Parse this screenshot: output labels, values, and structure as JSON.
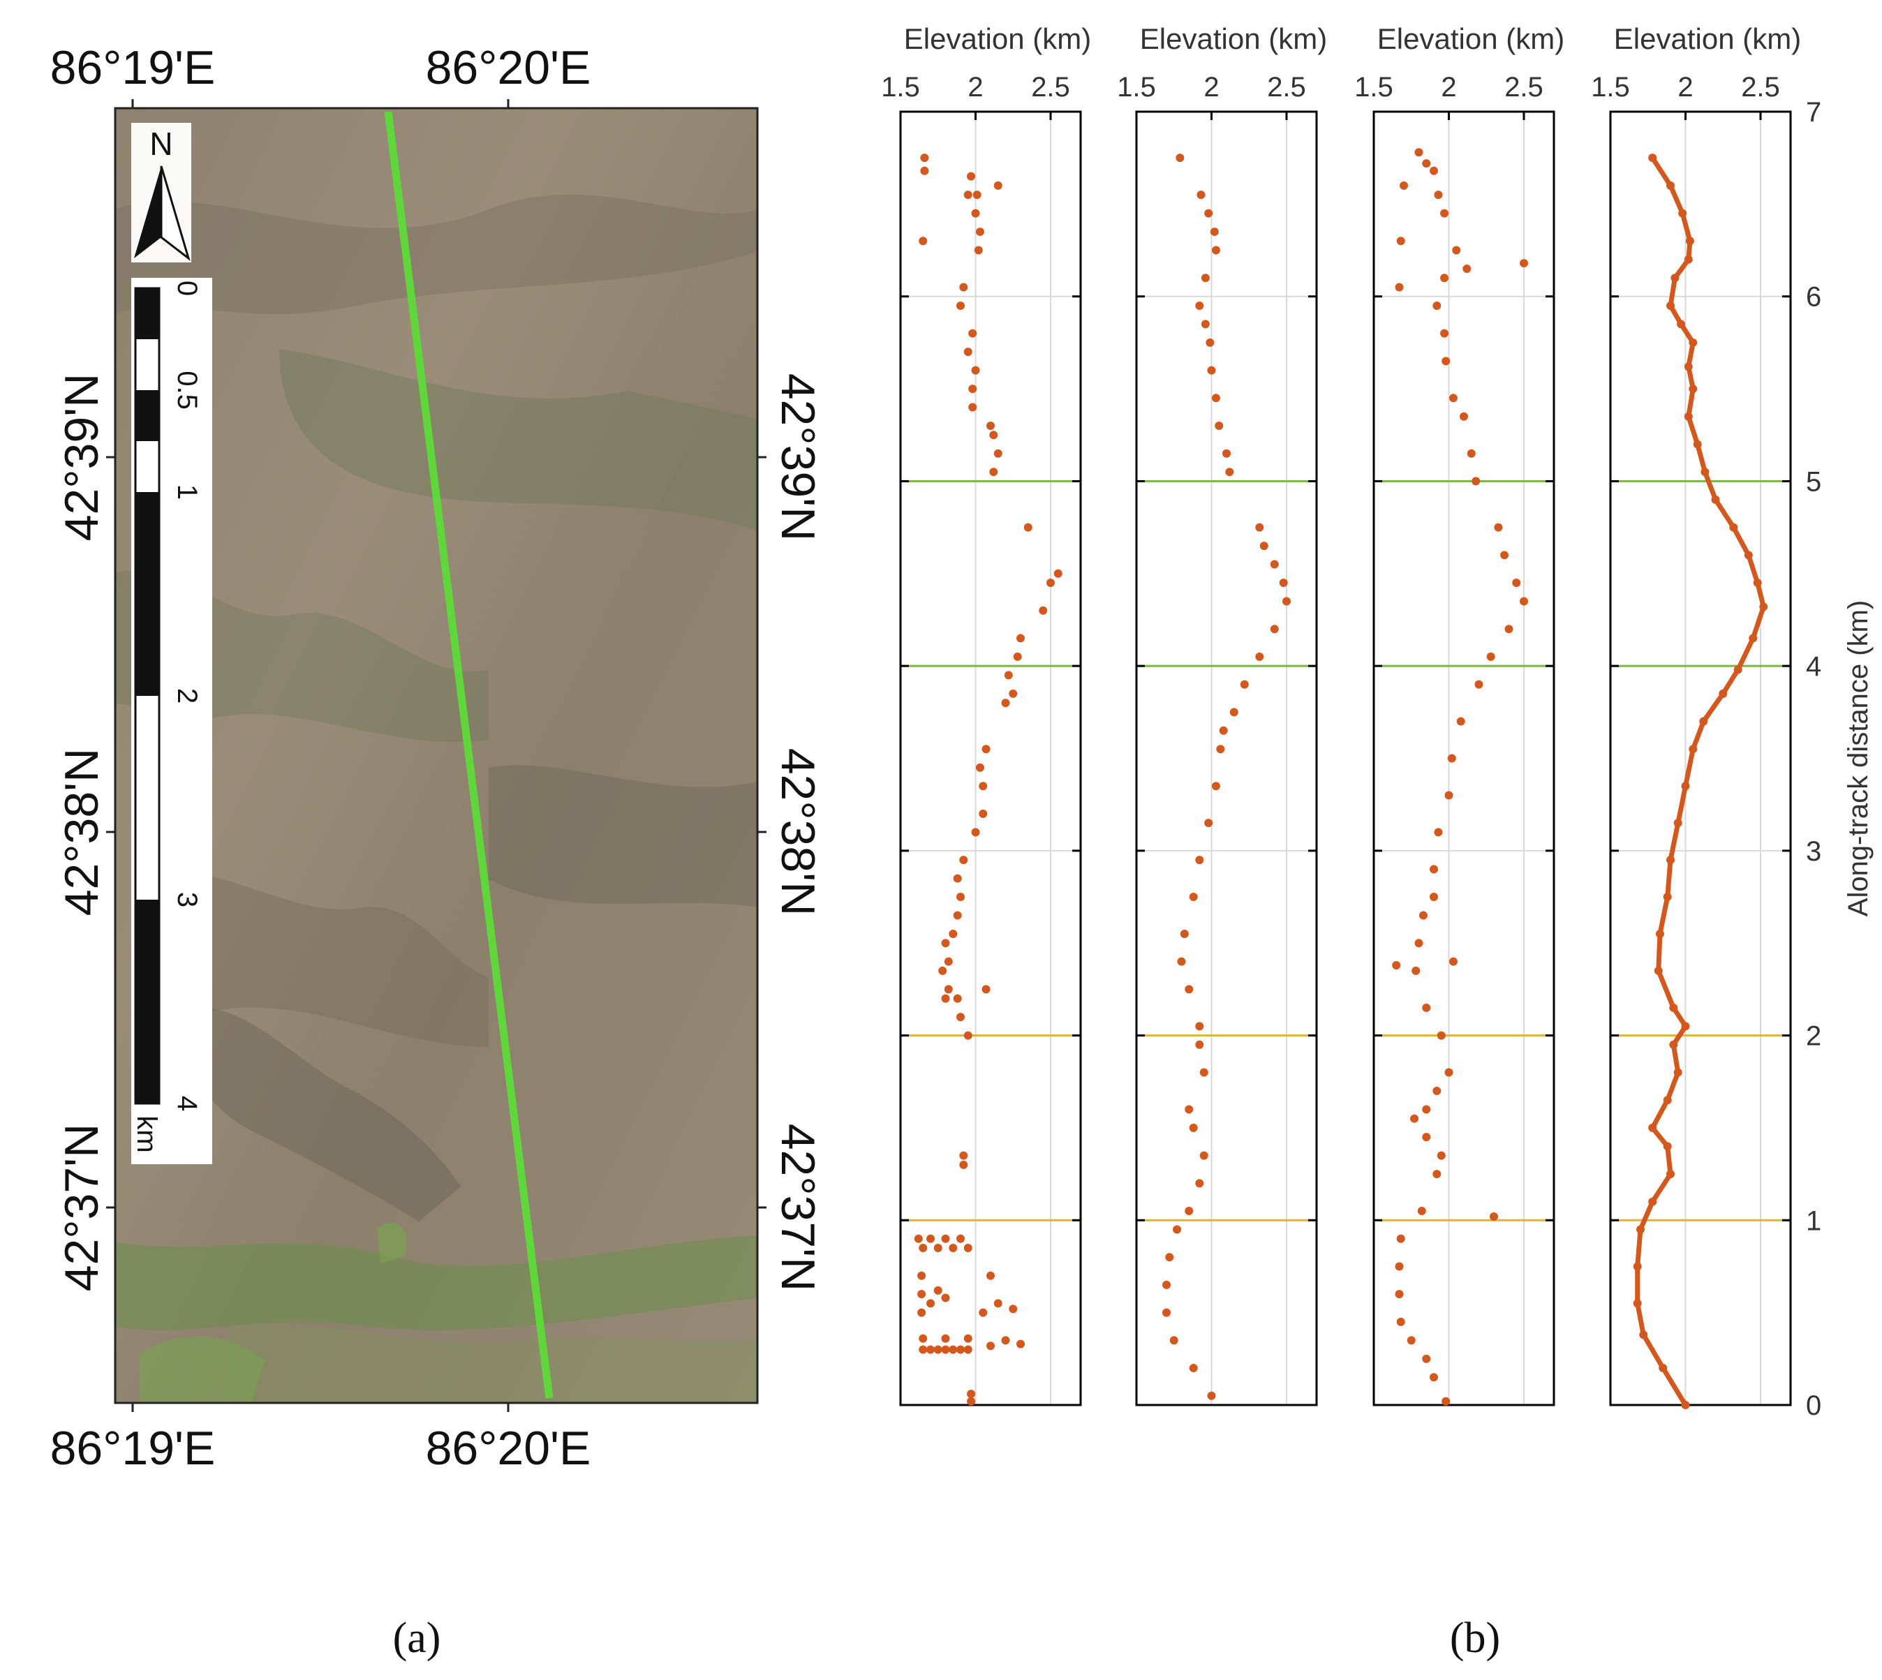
{
  "panel_a": {
    "caption": "(a)",
    "lon_labels": [
      "86°19'E",
      "86°20'E"
    ],
    "lat_labels": [
      "42°39'N",
      "42°38'N",
      "42°37'N"
    ],
    "north_arrow_label": "N",
    "scale_bar": {
      "ticks": [
        "0",
        "0.5",
        "1",
        "2",
        "3",
        "4"
      ],
      "unit": "km"
    },
    "track_color": "#5fd63a"
  },
  "panel_b": {
    "caption": "(b)"
  },
  "colors": {
    "points": "#d2581e",
    "green_box": "#7fb541",
    "orange_box": "#e0b43c",
    "grid": "#d9d9d9",
    "axis": "#000000"
  },
  "chart_data": [
    {
      "type": "scatter",
      "xlabel": "Elevation (km)",
      "xlim": [
        1.5,
        2.7
      ],
      "xticks": [
        "1.5",
        "2",
        "2.5"
      ],
      "ylim": [
        0,
        7
      ],
      "series": [
        {
          "points": [
            [
              1.97,
              0.02
            ],
            [
              1.97,
              0.06
            ],
            [
              1.65,
              0.3
            ],
            [
              1.7,
              0.3
            ],
            [
              1.75,
              0.3
            ],
            [
              1.8,
              0.3
            ],
            [
              1.85,
              0.3
            ],
            [
              1.9,
              0.3
            ],
            [
              1.95,
              0.3
            ],
            [
              2.1,
              0.32
            ],
            [
              2.2,
              0.35
            ],
            [
              2.3,
              0.33
            ],
            [
              1.65,
              0.36
            ],
            [
              1.8,
              0.36
            ],
            [
              1.95,
              0.36
            ],
            [
              1.64,
              0.5
            ],
            [
              1.64,
              0.6
            ],
            [
              1.64,
              0.7
            ],
            [
              1.7,
              0.55
            ],
            [
              1.75,
              0.62
            ],
            [
              1.8,
              0.58
            ],
            [
              2.05,
              0.5
            ],
            [
              2.15,
              0.55
            ],
            [
              2.25,
              0.52
            ],
            [
              2.1,
              0.7
            ],
            [
              1.65,
              0.85
            ],
            [
              1.75,
              0.85
            ],
            [
              1.85,
              0.85
            ],
            [
              1.95,
              0.85
            ],
            [
              1.62,
              0.9
            ],
            [
              1.7,
              0.9
            ],
            [
              1.8,
              0.9
            ],
            [
              1.9,
              0.9
            ],
            [
              1.92,
              1.3
            ],
            [
              1.92,
              1.35
            ],
            [
              1.95,
              2.0
            ],
            [
              1.9,
              2.1
            ],
            [
              1.8,
              2.2
            ],
            [
              1.82,
              2.25
            ],
            [
              1.88,
              2.2
            ],
            [
              2.07,
              2.25
            ],
            [
              1.78,
              2.35
            ],
            [
              1.82,
              2.4
            ],
            [
              1.8,
              2.5
            ],
            [
              1.85,
              2.55
            ],
            [
              1.88,
              2.65
            ],
            [
              1.9,
              2.75
            ],
            [
              1.88,
              2.85
            ],
            [
              1.92,
              2.95
            ],
            [
              2.0,
              3.1
            ],
            [
              2.05,
              3.2
            ],
            [
              2.05,
              3.35
            ],
            [
              2.03,
              3.45
            ],
            [
              2.07,
              3.55
            ],
            [
              2.2,
              3.8
            ],
            [
              2.25,
              3.85
            ],
            [
              2.22,
              3.95
            ],
            [
              2.28,
              4.05
            ],
            [
              2.3,
              4.15
            ],
            [
              2.45,
              4.3
            ],
            [
              2.5,
              4.45
            ],
            [
              2.55,
              4.5
            ],
            [
              2.35,
              4.75
            ],
            [
              2.12,
              5.05
            ],
            [
              2.15,
              5.15
            ],
            [
              2.12,
              5.25
            ],
            [
              2.1,
              5.3
            ],
            [
              1.98,
              5.4
            ],
            [
              1.98,
              5.5
            ],
            [
              2.0,
              5.6
            ],
            [
              1.95,
              5.7
            ],
            [
              1.98,
              5.8
            ],
            [
              1.9,
              5.95
            ],
            [
              1.92,
              6.05
            ],
            [
              2.02,
              6.25
            ],
            [
              2.03,
              6.35
            ],
            [
              1.65,
              6.3
            ],
            [
              2.0,
              6.45
            ],
            [
              2.01,
              6.55
            ],
            [
              1.95,
              6.55
            ],
            [
              2.15,
              6.6
            ],
            [
              1.97,
              6.65
            ],
            [
              1.66,
              6.68
            ],
            [
              1.66,
              6.75
            ]
          ]
        }
      ]
    },
    {
      "type": "scatter",
      "xlabel": "Elevation (km)",
      "xlim": [
        1.5,
        2.7
      ],
      "xticks": [
        "1.5",
        "2",
        "2.5"
      ],
      "ylim": [
        0,
        7
      ],
      "series": [
        {
          "points": [
            [
              2.0,
              0.05
            ],
            [
              1.88,
              0.2
            ],
            [
              1.75,
              0.35
            ],
            [
              1.7,
              0.5
            ],
            [
              1.7,
              0.65
            ],
            [
              1.72,
              0.8
            ],
            [
              1.77,
              0.95
            ],
            [
              1.85,
              1.05
            ],
            [
              1.92,
              1.2
            ],
            [
              1.95,
              1.35
            ],
            [
              1.88,
              1.5
            ],
            [
              1.85,
              1.6
            ],
            [
              1.95,
              1.8
            ],
            [
              1.92,
              1.95
            ],
            [
              1.92,
              2.05
            ],
            [
              1.85,
              2.25
            ],
            [
              1.8,
              2.4
            ],
            [
              1.82,
              2.55
            ],
            [
              1.88,
              2.75
            ],
            [
              1.92,
              2.95
            ],
            [
              1.98,
              3.15
            ],
            [
              2.03,
              3.35
            ],
            [
              2.06,
              3.55
            ],
            [
              2.08,
              3.65
            ],
            [
              2.15,
              3.75
            ],
            [
              2.22,
              3.9
            ],
            [
              2.32,
              4.05
            ],
            [
              2.42,
              4.2
            ],
            [
              2.5,
              4.35
            ],
            [
              2.48,
              4.45
            ],
            [
              2.42,
              4.55
            ],
            [
              2.35,
              4.65
            ],
            [
              2.32,
              4.75
            ],
            [
              2.12,
              5.05
            ],
            [
              2.1,
              5.15
            ],
            [
              2.05,
              5.3
            ],
            [
              2.03,
              5.45
            ],
            [
              2.0,
              5.6
            ],
            [
              1.99,
              5.75
            ],
            [
              1.96,
              5.85
            ],
            [
              1.92,
              5.95
            ],
            [
              1.96,
              6.1
            ],
            [
              2.03,
              6.25
            ],
            [
              2.02,
              6.35
            ],
            [
              1.98,
              6.45
            ],
            [
              1.93,
              6.55
            ],
            [
              1.79,
              6.75
            ]
          ]
        }
      ]
    },
    {
      "type": "scatter",
      "xlabel": "Elevation (km)",
      "xlim": [
        1.5,
        2.7
      ],
      "xticks": [
        "1.5",
        "2",
        "2.5"
      ],
      "ylim": [
        0,
        7
      ],
      "series": [
        {
          "points": [
            [
              1.98,
              0.02
            ],
            [
              1.9,
              0.15
            ],
            [
              1.85,
              0.25
            ],
            [
              1.75,
              0.35
            ],
            [
              1.68,
              0.45
            ],
            [
              1.67,
              0.6
            ],
            [
              1.67,
              0.75
            ],
            [
              1.68,
              0.9
            ],
            [
              1.82,
              1.05
            ],
            [
              2.3,
              1.02
            ],
            [
              1.92,
              1.25
            ],
            [
              1.95,
              1.35
            ],
            [
              1.85,
              1.45
            ],
            [
              1.77,
              1.55
            ],
            [
              1.85,
              1.6
            ],
            [
              1.92,
              1.7
            ],
            [
              2.0,
              1.8
            ],
            [
              1.95,
              2.0
            ],
            [
              1.85,
              2.15
            ],
            [
              1.78,
              2.35
            ],
            [
              2.03,
              2.4
            ],
            [
              1.65,
              2.38
            ],
            [
              1.8,
              2.5
            ],
            [
              1.83,
              2.65
            ],
            [
              1.9,
              2.75
            ],
            [
              1.9,
              2.9
            ],
            [
              1.93,
              3.1
            ],
            [
              2.0,
              3.3
            ],
            [
              2.02,
              3.5
            ],
            [
              2.08,
              3.7
            ],
            [
              2.2,
              3.9
            ],
            [
              2.28,
              4.05
            ],
            [
              2.4,
              4.2
            ],
            [
              2.5,
              4.35
            ],
            [
              2.45,
              4.45
            ],
            [
              2.37,
              4.6
            ],
            [
              2.33,
              4.75
            ],
            [
              2.18,
              5.0
            ],
            [
              2.15,
              5.15
            ],
            [
              2.1,
              5.35
            ],
            [
              2.03,
              5.45
            ],
            [
              1.98,
              5.65
            ],
            [
              1.97,
              5.8
            ],
            [
              1.92,
              5.95
            ],
            [
              1.97,
              6.1
            ],
            [
              2.05,
              6.25
            ],
            [
              2.12,
              6.15
            ],
            [
              2.5,
              6.18
            ],
            [
              1.67,
              6.05
            ],
            [
              1.68,
              6.3
            ],
            [
              1.97,
              6.45
            ],
            [
              1.93,
              6.55
            ],
            [
              1.7,
              6.6
            ],
            [
              1.85,
              6.72
            ],
            [
              1.9,
              6.68
            ],
            [
              1.8,
              6.78
            ]
          ]
        }
      ]
    },
    {
      "type": "line",
      "xlabel": "Elevation (km)",
      "xlim": [
        1.5,
        2.7
      ],
      "xticks": [
        "1.5",
        "2",
        "2.5"
      ],
      "ylim": [
        0,
        7
      ],
      "y_axis_right": {
        "label": "Along-track distance (km)",
        "ticks": [
          "0",
          "1",
          "2",
          "3",
          "4",
          "5",
          "6",
          "7"
        ]
      },
      "green_box": [
        4,
        5
      ],
      "orange_box": [
        1,
        2
      ],
      "series": [
        {
          "points": [
            [
              2.0,
              0.0
            ],
            [
              1.85,
              0.2
            ],
            [
              1.72,
              0.38
            ],
            [
              1.68,
              0.55
            ],
            [
              1.68,
              0.75
            ],
            [
              1.7,
              0.95
            ],
            [
              1.78,
              1.1
            ],
            [
              1.9,
              1.25
            ],
            [
              1.88,
              1.4
            ],
            [
              1.78,
              1.5
            ],
            [
              1.88,
              1.65
            ],
            [
              1.95,
              1.8
            ],
            [
              1.92,
              1.95
            ],
            [
              2.0,
              2.05
            ],
            [
              1.92,
              2.15
            ],
            [
              1.82,
              2.35
            ],
            [
              1.83,
              2.55
            ],
            [
              1.88,
              2.75
            ],
            [
              1.9,
              2.95
            ],
            [
              1.95,
              3.15
            ],
            [
              2.0,
              3.35
            ],
            [
              2.05,
              3.55
            ],
            [
              2.12,
              3.7
            ],
            [
              2.25,
              3.85
            ],
            [
              2.35,
              3.98
            ],
            [
              2.45,
              4.15
            ],
            [
              2.52,
              4.32
            ],
            [
              2.48,
              4.45
            ],
            [
              2.42,
              4.6
            ],
            [
              2.32,
              4.75
            ],
            [
              2.2,
              4.9
            ],
            [
              2.13,
              5.05
            ],
            [
              2.08,
              5.2
            ],
            [
              2.02,
              5.35
            ],
            [
              2.05,
              5.5
            ],
            [
              2.02,
              5.62
            ],
            [
              2.05,
              5.75
            ],
            [
              1.97,
              5.85
            ],
            [
              1.9,
              5.95
            ],
            [
              1.93,
              6.1
            ],
            [
              2.02,
              6.2
            ],
            [
              2.03,
              6.3
            ],
            [
              1.98,
              6.45
            ],
            [
              1.9,
              6.6
            ],
            [
              1.78,
              6.75
            ]
          ]
        }
      ]
    }
  ]
}
